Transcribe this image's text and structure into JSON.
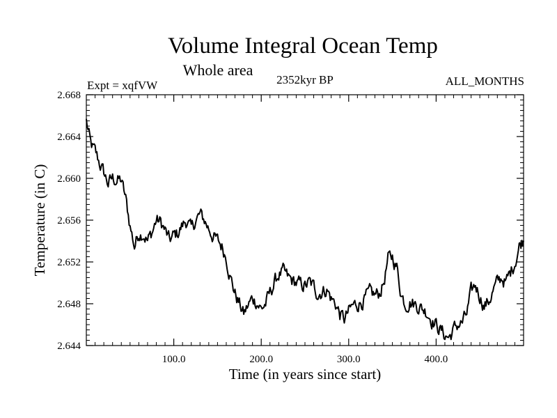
{
  "chart_data": {
    "type": "line",
    "title": "Volume Integral Ocean Temp",
    "subtitle": "Whole area",
    "annotations": {
      "left": "Expt = xqfVW",
      "center": "2352kyr BP",
      "right": "ALL_MONTHS"
    },
    "xlabel": "Time (in years since start)",
    "ylabel": "Temperature (in C)",
    "xlim": [
      0,
      500
    ],
    "ylim": [
      2.644,
      2.668
    ],
    "xticks": [
      100,
      200,
      300,
      400
    ],
    "xtick_labels": [
      "100.0",
      "200.0",
      "300.0",
      "400.0"
    ],
    "yticks": [
      2.644,
      2.648,
      2.652,
      2.656,
      2.66,
      2.664,
      2.668
    ],
    "ytick_labels": [
      "2.644",
      "2.648",
      "2.652",
      "2.656",
      "2.660",
      "2.664",
      "2.668"
    ],
    "series": [
      {
        "name": "Volume Integral Ocean Temp",
        "anchors_x": [
          0,
          5,
          10,
          15,
          20,
          25,
          30,
          35,
          40,
          45,
          50,
          55,
          60,
          65,
          70,
          75,
          80,
          85,
          90,
          95,
          100,
          105,
          110,
          115,
          120,
          125,
          130,
          135,
          140,
          145,
          150,
          155,
          160,
          165,
          170,
          175,
          180,
          185,
          190,
          195,
          200,
          205,
          210,
          215,
          220,
          225,
          230,
          235,
          240,
          245,
          250,
          255,
          260,
          265,
          270,
          275,
          280,
          285,
          290,
          295,
          300,
          305,
          310,
          315,
          320,
          325,
          330,
          335,
          340,
          345,
          350,
          355,
          360,
          365,
          370,
          375,
          380,
          385,
          390,
          395,
          400,
          405,
          410,
          415,
          420,
          425,
          430,
          435,
          440,
          445,
          450,
          455,
          460,
          465,
          470,
          475,
          480,
          485,
          490,
          495,
          500
        ],
        "anchors_y": [
          2.6655,
          2.6632,
          2.6625,
          2.6615,
          2.6605,
          2.6595,
          2.66,
          2.6598,
          2.6598,
          2.658,
          2.6555,
          2.6535,
          2.6548,
          2.6548,
          2.654,
          2.6548,
          2.656,
          2.6558,
          2.655,
          2.654,
          2.6545,
          2.6548,
          2.6555,
          2.656,
          2.655,
          2.656,
          2.6565,
          2.656,
          2.6552,
          2.6545,
          2.654,
          2.6535,
          2.6525,
          2.6505,
          2.649,
          2.648,
          2.647,
          2.6478,
          2.6485,
          2.6482,
          2.6475,
          2.648,
          2.649,
          2.65,
          2.6508,
          2.651,
          2.6505,
          2.6502,
          2.65,
          2.6498,
          2.6497,
          2.65,
          2.6496,
          2.649,
          2.6492,
          2.6494,
          2.6485,
          2.648,
          2.647,
          2.6465,
          2.6472,
          2.6478,
          2.648,
          2.6482,
          2.6486,
          2.649,
          2.6488,
          2.649,
          2.65,
          2.6522,
          2.6525,
          2.6515,
          2.649,
          2.648,
          2.6482,
          2.648,
          2.6478,
          2.6475,
          2.6472,
          2.6465,
          2.646,
          2.6455,
          2.645,
          2.6448,
          2.6455,
          2.646,
          2.6462,
          2.647,
          2.649,
          2.6498,
          2.6488,
          2.6478,
          2.6482,
          2.6492,
          2.65,
          2.6505,
          2.65,
          2.651,
          2.652,
          2.6535,
          2.6542
        ]
      }
    ]
  }
}
